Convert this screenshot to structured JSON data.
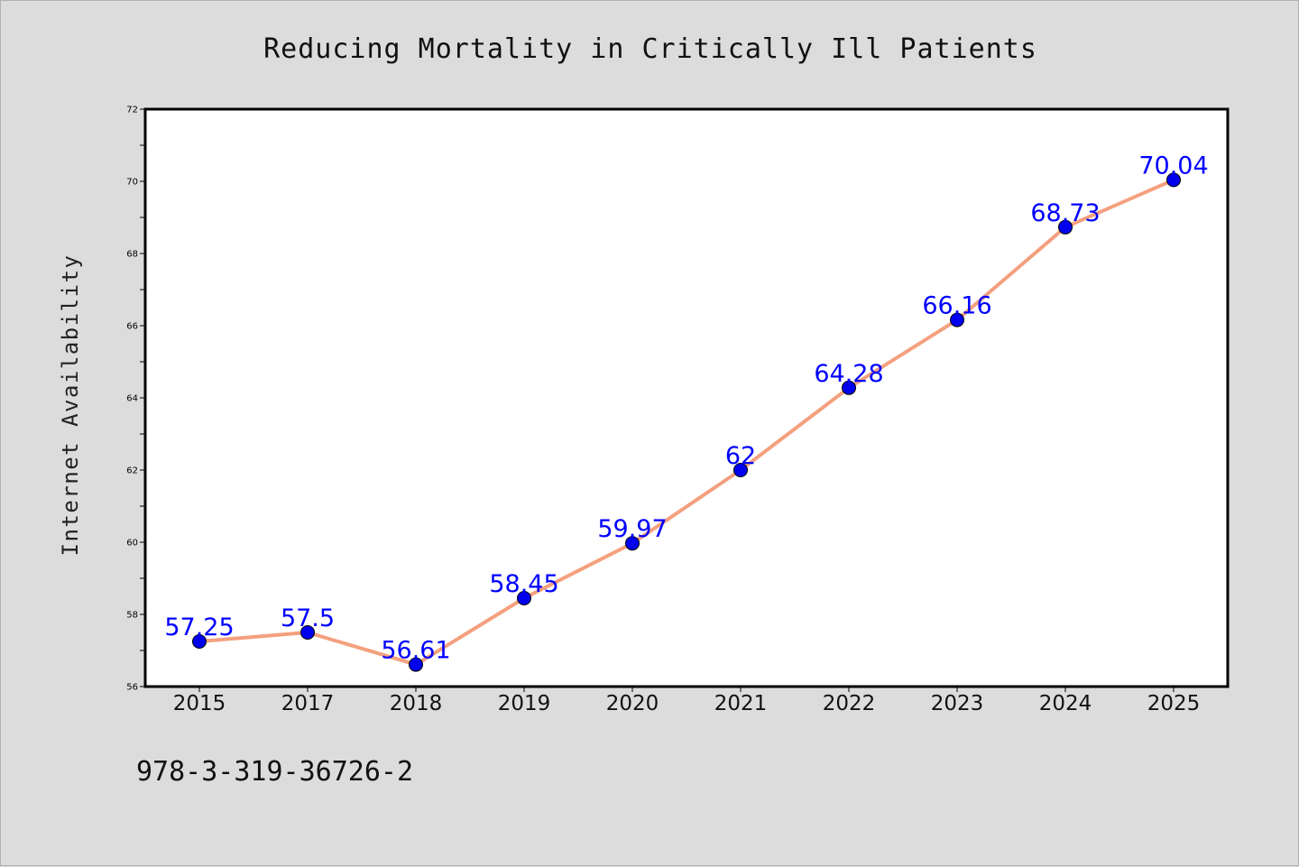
{
  "chart_data": {
    "type": "line",
    "title": "Reducing Mortality in Critically Ill Patients",
    "xlabel": "",
    "ylabel": "Internet Availability",
    "categories": [
      "2015",
      "2017",
      "2018",
      "2019",
      "2020",
      "2021",
      "2022",
      "2023",
      "2024",
      "2025"
    ],
    "series": [
      {
        "values": [
          57.25,
          57.5,
          56.61,
          58.45,
          59.97,
          62,
          64.28,
          66.16,
          68.73,
          70.04
        ],
        "data_labels": [
          "57.25",
          "57.5",
          "56.61",
          "58.45",
          "59.97",
          "62",
          "64.28",
          "66.16",
          "68.73",
          "70.04"
        ],
        "line_color": "#f4a07e",
        "marker_color": "#0000ee"
      }
    ],
    "ylim": [
      56,
      72
    ],
    "y_ticks": [
      "56",
      "58",
      "60",
      "62",
      "64",
      "66",
      "68",
      "70",
      "72"
    ],
    "grid": false,
    "legend": "none",
    "data_label_color": "#0000ff"
  },
  "footer": {
    "identifier": "978-3-319-36726-2"
  }
}
